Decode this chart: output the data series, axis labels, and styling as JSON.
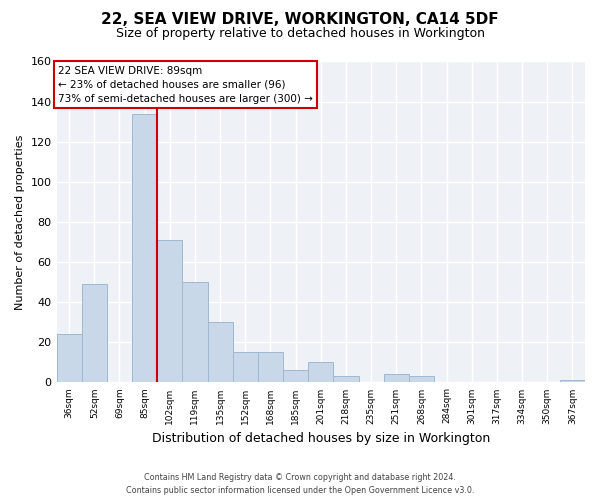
{
  "title": "22, SEA VIEW DRIVE, WORKINGTON, CA14 5DF",
  "subtitle": "Size of property relative to detached houses in Workington",
  "xlabel": "Distribution of detached houses by size in Workington",
  "ylabel": "Number of detached properties",
  "bar_labels": [
    "36sqm",
    "52sqm",
    "69sqm",
    "85sqm",
    "102sqm",
    "119sqm",
    "135sqm",
    "152sqm",
    "168sqm",
    "185sqm",
    "201sqm",
    "218sqm",
    "235sqm",
    "251sqm",
    "268sqm",
    "284sqm",
    "301sqm",
    "317sqm",
    "334sqm",
    "350sqm",
    "367sqm"
  ],
  "bar_values": [
    24,
    49,
    0,
    134,
    71,
    50,
    30,
    15,
    15,
    6,
    10,
    3,
    0,
    4,
    3,
    0,
    0,
    0,
    0,
    0,
    1
  ],
  "bar_color": "#c8d8e8",
  "bar_edge_color": "#a0b8d0",
  "vline_x": 3.5,
  "vline_color": "#cc0000",
  "annotation_title": "22 SEA VIEW DRIVE: 89sqm",
  "annotation_line1": "← 23% of detached houses are smaller (96)",
  "annotation_line2": "73% of semi-detached houses are larger (300) →",
  "annotation_box_color": "#ffffff",
  "annotation_box_edge": "#cc0000",
  "ylim": [
    0,
    160
  ],
  "footer1": "Contains HM Land Registry data © Crown copyright and database right 2024.",
  "footer2": "Contains public sector information licensed under the Open Government Licence v3.0.",
  "title_fontsize": 11,
  "subtitle_fontsize": 9,
  "bg_color": "#ffffff",
  "plot_bg_color": "#eef2f7",
  "grid_color": "#ffffff"
}
